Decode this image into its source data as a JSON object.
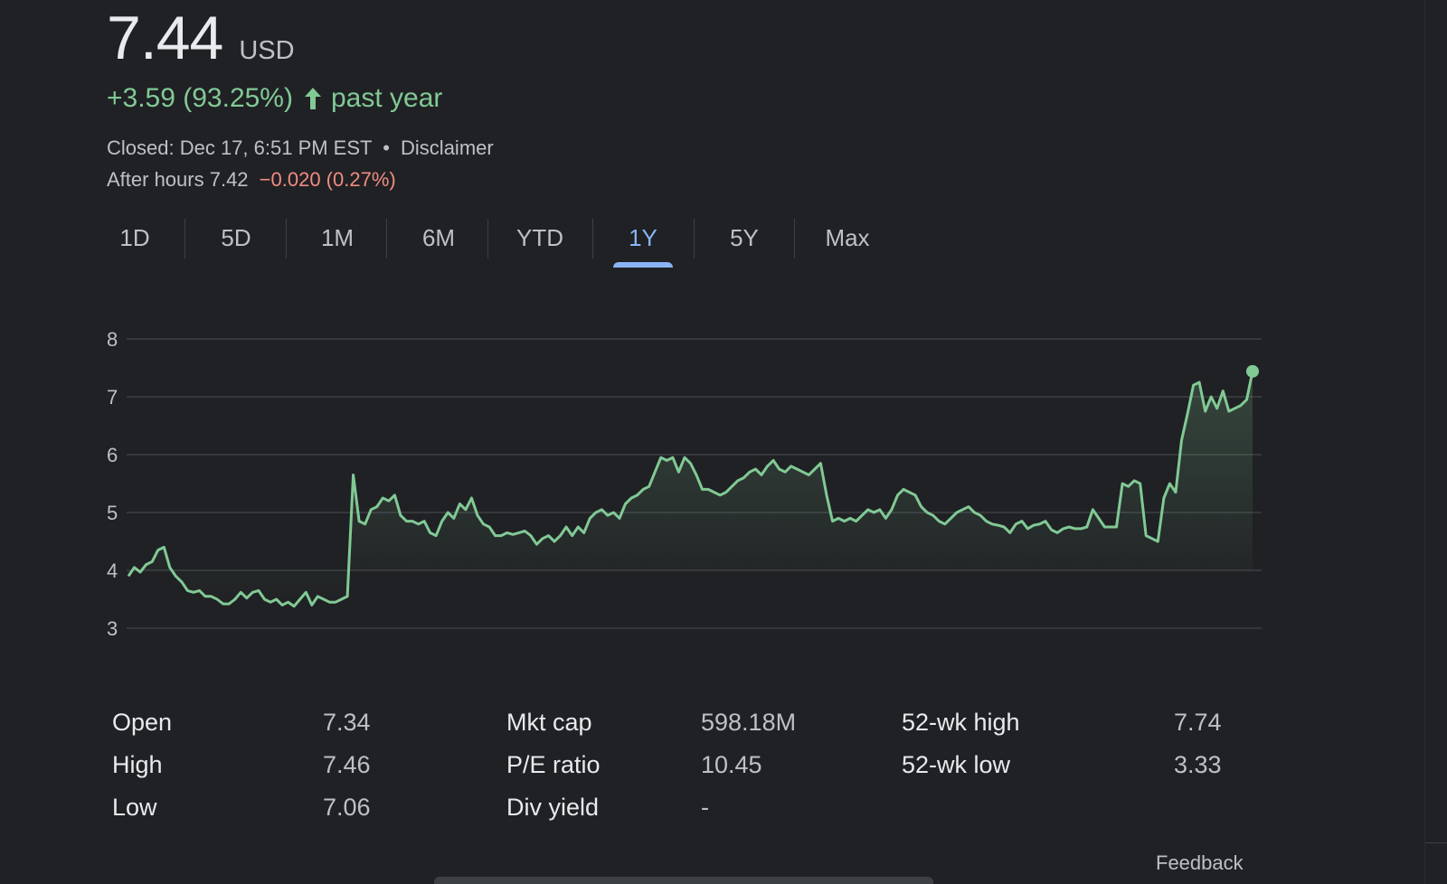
{
  "quote": {
    "price": "7.44",
    "currency": "USD",
    "change": "+3.59 (93.25%)",
    "change_period": "past year",
    "closed_text": "Closed: Dec 17, 6:51 PM EST",
    "separator": "•",
    "disclaimer": "Disclaimer",
    "after_hours_label": "After hours 7.42",
    "after_hours_change": "−0.020 (0.27%)"
  },
  "colors": {
    "up": "#81c995",
    "down": "#f28b82",
    "accent": "#8ab4f8",
    "background": "#202124"
  },
  "range_tabs": [
    {
      "label": "1D",
      "active": false
    },
    {
      "label": "5D",
      "active": false
    },
    {
      "label": "1M",
      "active": false
    },
    {
      "label": "6M",
      "active": false
    },
    {
      "label": "YTD",
      "active": false
    },
    {
      "label": "1Y",
      "active": true
    },
    {
      "label": "5Y",
      "active": false
    },
    {
      "label": "Max",
      "active": false
    }
  ],
  "chart_data": {
    "type": "area",
    "ylim": [
      3,
      8
    ],
    "y_ticks": [
      "8",
      "7",
      "6",
      "5",
      "4",
      "3"
    ],
    "grid": true,
    "line_color": "#81c995",
    "values": [
      3.9,
      4.05,
      3.97,
      4.1,
      4.15,
      4.35,
      4.4,
      4.05,
      3.9,
      3.8,
      3.65,
      3.62,
      3.65,
      3.55,
      3.55,
      3.5,
      3.42,
      3.42,
      3.5,
      3.62,
      3.52,
      3.62,
      3.65,
      3.5,
      3.45,
      3.5,
      3.4,
      3.45,
      3.38,
      3.5,
      3.62,
      3.4,
      3.55,
      3.5,
      3.45,
      3.45,
      3.5,
      3.55,
      5.65,
      4.85,
      4.8,
      5.05,
      5.1,
      5.25,
      5.2,
      5.3,
      4.95,
      4.85,
      4.85,
      4.8,
      4.85,
      4.65,
      4.6,
      4.85,
      5.0,
      4.9,
      5.15,
      5.05,
      5.25,
      4.95,
      4.8,
      4.75,
      4.6,
      4.6,
      4.65,
      4.62,
      4.65,
      4.68,
      4.6,
      4.45,
      4.55,
      4.6,
      4.5,
      4.6,
      4.75,
      4.6,
      4.75,
      4.65,
      4.9,
      5.0,
      5.05,
      4.95,
      5.0,
      4.9,
      5.15,
      5.25,
      5.3,
      5.4,
      5.45,
      5.7,
      5.95,
      5.9,
      5.95,
      5.7,
      5.95,
      5.85,
      5.65,
      5.4,
      5.4,
      5.35,
      5.3,
      5.35,
      5.45,
      5.55,
      5.6,
      5.7,
      5.75,
      5.65,
      5.8,
      5.9,
      5.75,
      5.7,
      5.8,
      5.75,
      5.7,
      5.65,
      5.75,
      5.85,
      5.3,
      4.85,
      4.9,
      4.85,
      4.9,
      4.85,
      4.95,
      5.05,
      5.0,
      5.05,
      4.9,
      5.05,
      5.3,
      5.4,
      5.35,
      5.3,
      5.1,
      5.0,
      4.95,
      4.85,
      4.8,
      4.9,
      5.0,
      5.05,
      5.1,
      5.0,
      4.95,
      4.85,
      4.8,
      4.78,
      4.75,
      4.65,
      4.8,
      4.85,
      4.72,
      4.78,
      4.8,
      4.85,
      4.7,
      4.65,
      4.72,
      4.75,
      4.72,
      4.72,
      4.75,
      5.05,
      4.9,
      4.75,
      4.75,
      4.75,
      5.5,
      5.45,
      5.55,
      5.5,
      4.6,
      4.55,
      4.5,
      5.25,
      5.5,
      5.35,
      6.25,
      6.7,
      7.2,
      7.25,
      6.75,
      7.0,
      6.8,
      7.1,
      6.75,
      6.8,
      6.85,
      6.95,
      7.44
    ]
  },
  "stats": [
    {
      "label": "Open",
      "value": "7.34"
    },
    {
      "label": "High",
      "value": "7.46"
    },
    {
      "label": "Low",
      "value": "7.06"
    },
    {
      "label": "Mkt cap",
      "value": "598.18M"
    },
    {
      "label": "P/E ratio",
      "value": "10.45"
    },
    {
      "label": "Div yield",
      "value": "-"
    },
    {
      "label": "52-wk high",
      "value": "7.74"
    },
    {
      "label": "52-wk low",
      "value": "3.33"
    }
  ],
  "footer": {
    "feedback": "Feedback"
  }
}
